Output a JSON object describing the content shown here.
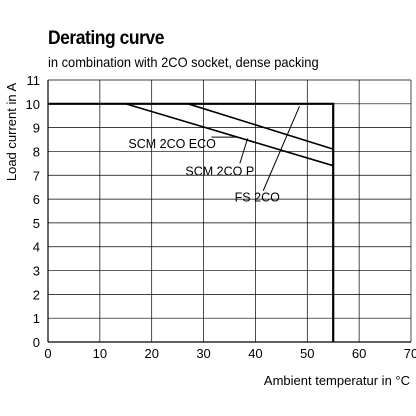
{
  "chart_data": {
    "type": "line",
    "title": "Derating curve",
    "subtitle": "in combination with 2CO socket, dense packing",
    "xlabel": "Ambient temperatur in °C",
    "ylabel": "Load  current in A",
    "xlim": [
      0,
      70
    ],
    "ylim": [
      0,
      11
    ],
    "x_ticks": [
      "0",
      "10",
      "20",
      "30",
      "40",
      "50",
      "60",
      "70"
    ],
    "y_ticks": [
      "0",
      "1",
      "2",
      "3",
      "4",
      "5",
      "6",
      "7",
      "8",
      "9",
      "10",
      "11"
    ],
    "grid": true,
    "series": [
      {
        "name": "FS 2CO",
        "color": "#000000",
        "points": [
          [
            0,
            10
          ],
          [
            55,
            10
          ],
          [
            55,
            0
          ]
        ]
      },
      {
        "name": "SCM 2CO P",
        "color": "#000000",
        "points": [
          [
            27,
            10
          ],
          [
            55,
            8.1
          ]
        ]
      },
      {
        "name": "SCM 2CO ECO",
        "color": "#000000",
        "points": [
          [
            15,
            10
          ],
          [
            55,
            7.4
          ]
        ]
      }
    ],
    "annotations": [
      {
        "text": "SCM 2CO ECO",
        "x": 15.5,
        "y": 8.15,
        "anchor_x": 36.5,
        "anchor_y": 8.6,
        "line_from": [
          31.5,
          8.6
        ]
      },
      {
        "text": "SCM 2CO P",
        "x": 26.5,
        "y": 7.0,
        "anchor_x": 37.0,
        "anchor_y": 7.5,
        "line_from": [
          38.5,
          8.55
        ]
      },
      {
        "text": "FS 2CO",
        "x": 36.0,
        "y": 5.9,
        "anchor_x": 41.5,
        "anchor_y": 6.35,
        "line_from": [
          48.5,
          9.9
        ]
      }
    ]
  }
}
